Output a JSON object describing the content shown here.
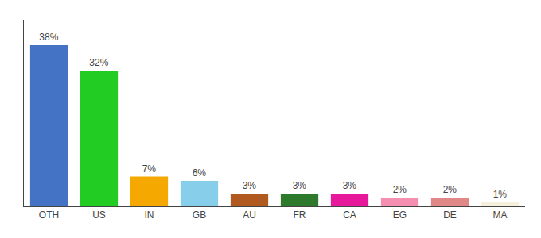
{
  "chart_data": {
    "type": "bar",
    "categories": [
      "OTH",
      "US",
      "IN",
      "GB",
      "AU",
      "FR",
      "CA",
      "EG",
      "DE",
      "MA"
    ],
    "values": [
      38,
      32,
      7,
      6,
      3,
      3,
      3,
      2,
      2,
      1
    ],
    "value_labels": [
      "38%",
      "32%",
      "7%",
      "6%",
      "3%",
      "3%",
      "3%",
      "2%",
      "2%",
      "1%"
    ],
    "colors": [
      "#4472c4",
      "#22cc22",
      "#f5a800",
      "#87ceeb",
      "#b05a20",
      "#2d7a2d",
      "#e8189a",
      "#f48fb1",
      "#e08888",
      "#f5f0dc"
    ],
    "ylim": [
      0,
      44
    ],
    "data_labels": true,
    "tick_labels": "x",
    "grid": false
  }
}
